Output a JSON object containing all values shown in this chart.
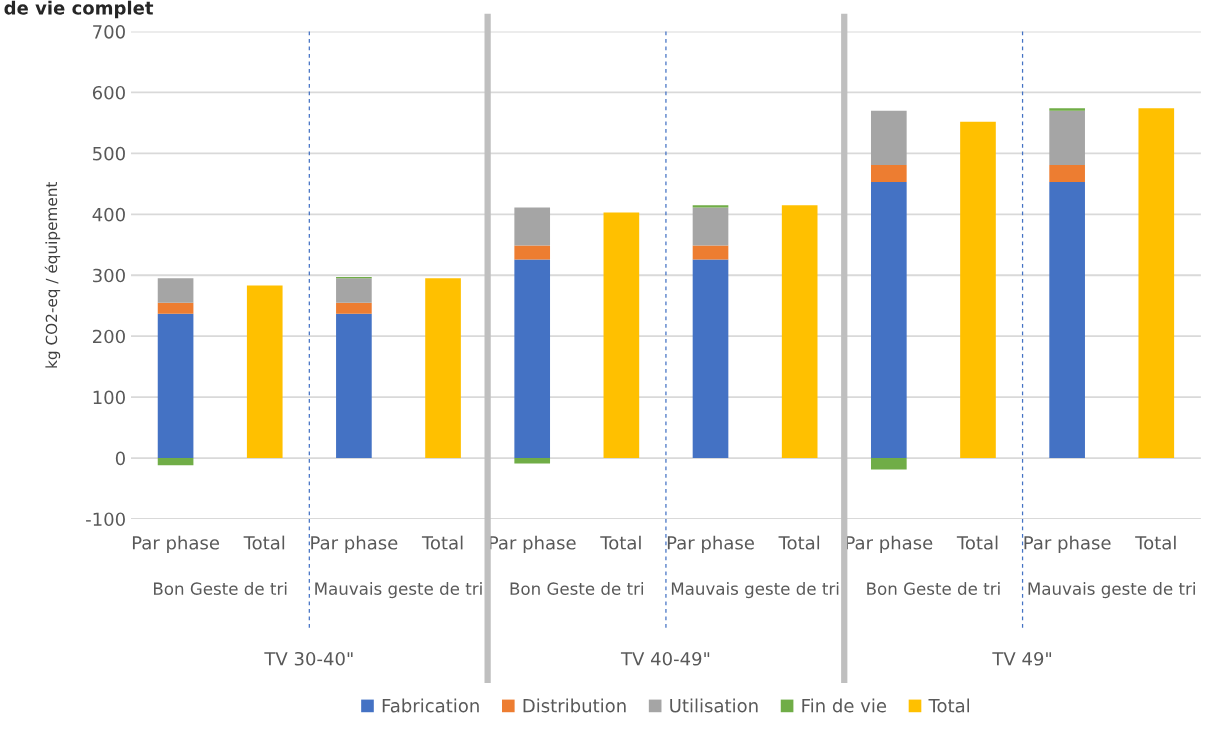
{
  "chart_data": {
    "type": "bar",
    "title": "de vie complet",
    "ylabel": "kg CO2-eq / équipement",
    "categories": [
      "Par phase",
      "Total",
      "Par phase",
      "Total",
      "Par phase",
      "Total",
      "Par phase",
      "Total",
      "Par phase",
      "Total",
      "Par phase",
      "Total"
    ],
    "annotations": [
      "Bon Geste de tri",
      "Mauvais geste de tri",
      "Bon Geste de tri",
      "Mauvais geste de tri",
      "Bon Geste de tri",
      "Mauvais geste de tri",
      "TV 30-40\"",
      "TV 40-49\"",
      "TV 49\""
    ],
    "stacked": true,
    "series": [
      {
        "name": "Fabrication",
        "color": "#4472c4",
        "values": [
          237,
          null,
          237,
          null,
          326,
          null,
          326,
          null,
          453,
          null,
          453,
          null
        ]
      },
      {
        "name": "Distribution",
        "color": "#ed7d31",
        "values": [
          18,
          null,
          18,
          null,
          23,
          null,
          23,
          null,
          28,
          null,
          28,
          null
        ]
      },
      {
        "name": "Utilisation",
        "color": "#a5a5a5",
        "values": [
          40,
          null,
          40,
          null,
          62,
          null,
          62,
          null,
          89,
          null,
          89,
          null
        ]
      },
      {
        "name": "Fin de vie",
        "color": "#70ad47",
        "values": [
          -12,
          null,
          2,
          null,
          -9,
          null,
          4,
          null,
          -19,
          null,
          4,
          null
        ]
      },
      {
        "name": "Total",
        "color": "#ffc000",
        "values": [
          null,
          283,
          null,
          295,
          null,
          403,
          null,
          415,
          null,
          552,
          null,
          574
        ]
      }
    ],
    "ylim": [
      -100,
      700
    ],
    "yticks": [
      -100,
      0,
      100,
      200,
      300,
      400,
      500,
      600,
      700
    ],
    "grid": "y",
    "legend": "bottom"
  }
}
